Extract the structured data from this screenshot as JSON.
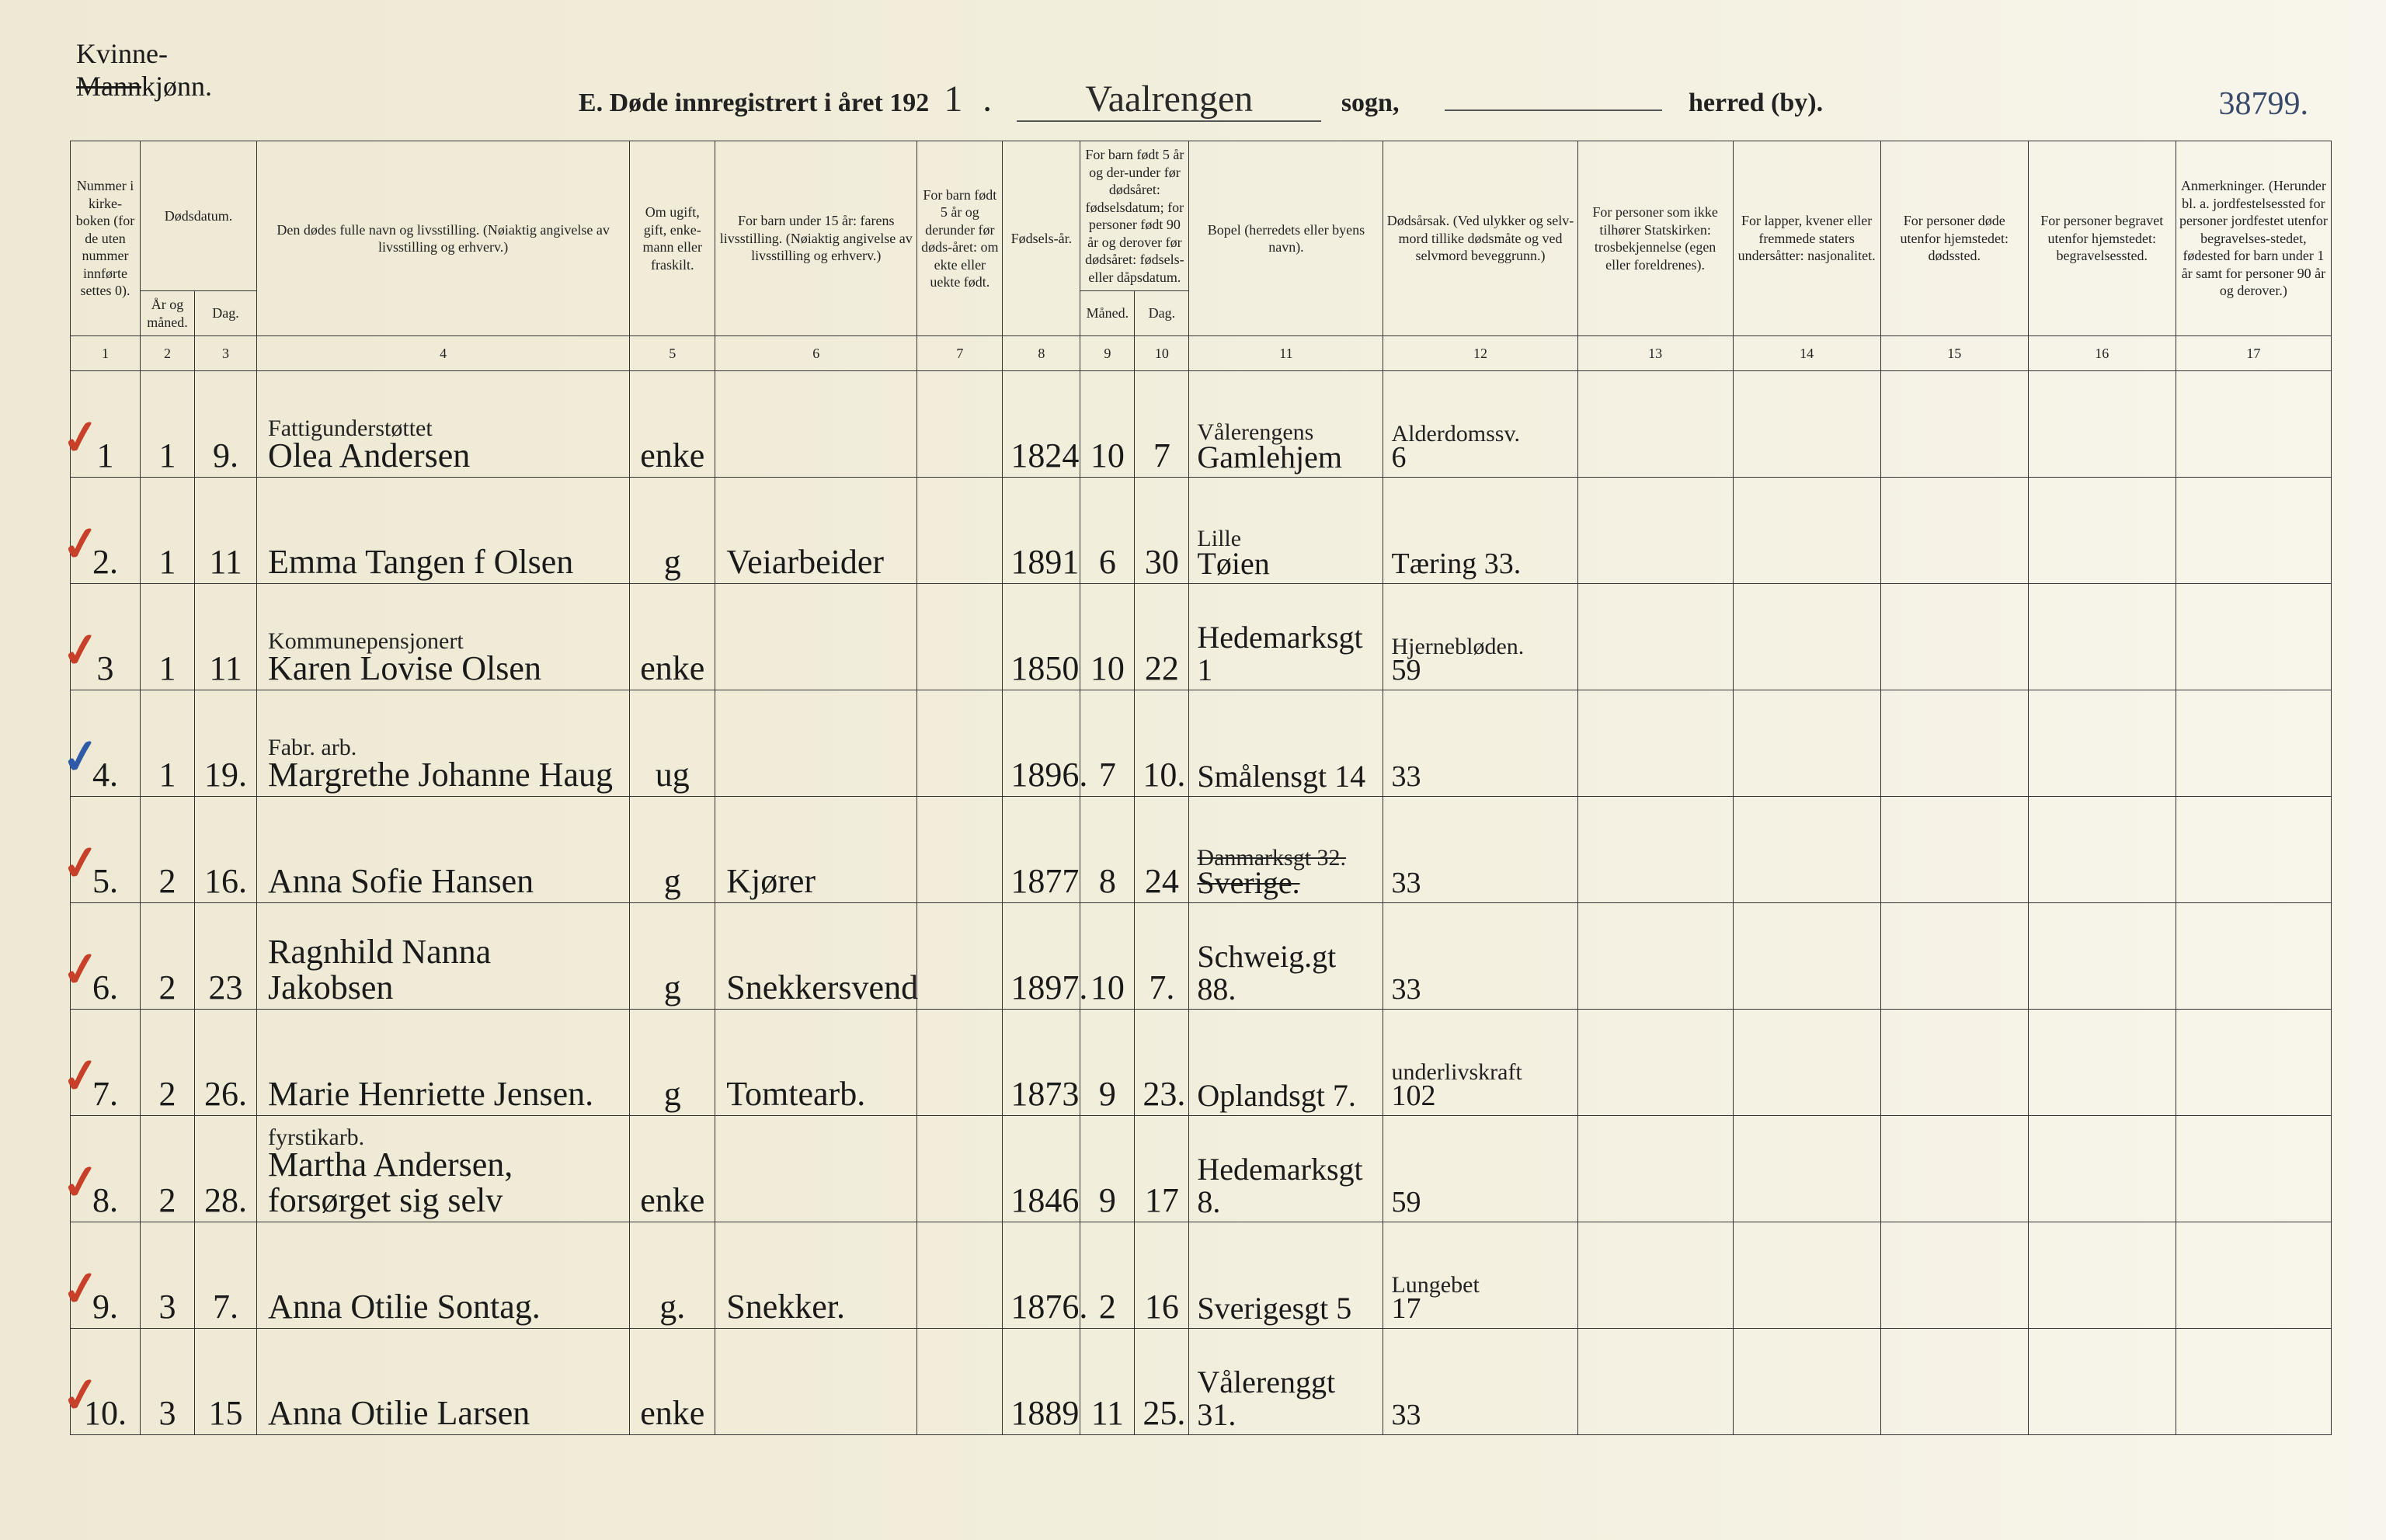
{
  "annotation": {
    "kvinne": "Kvinne-",
    "mannkjonn_struck": "Mann",
    "kjonn_suffix": "kjønn."
  },
  "title": {
    "prefix": "E.  Døde innregistrert i året 192",
    "year_digit": "1",
    "sogn_value": "Vaalrengen",
    "sogn_label": "sogn,",
    "herred_label": "herred (by)."
  },
  "corner_number": "38799.",
  "header": {
    "c1": "Nummer i kirke-boken (for de uten nummer innførte settes 0).",
    "c2a": "Dødsdatum.",
    "c2": "År og måned.",
    "c3": "Dag.",
    "c4": "Den dødes fulle navn og livsstilling. (Nøiaktig angivelse av livsstilling og erhverv.)",
    "c5": "Om ugift, gift, enke-mann eller fraskilt.",
    "c6": "For barn under 15 år: farens livsstilling. (Nøiaktig angivelse av livsstilling og erhverv.)",
    "c7": "For barn født 5 år og derunder før døds-året: om ekte eller uekte født.",
    "c8": "Fødsels-år.",
    "c9_10_top": "For barn født 5 år og der-under før dødsåret: fødselsdatum; for personer født 90 år og derover før dødsåret: fødsels- eller dåpsdatum.",
    "c9": "Måned.",
    "c10": "Dag.",
    "c11": "Bopel (herredets eller byens navn).",
    "c12": "Dødsårsak. (Ved ulykker og selv-mord tillike dødsmåte og ved selvmord beveggrunn.)",
    "c13": "For personer som ikke tilhører Statskirken: trosbekjennelse (egen eller foreldrenes).",
    "c14": "For lapper, kvener eller fremmede staters undersåtter: nasjonalitet.",
    "c15": "For personer døde utenfor hjemstedet: dødssted.",
    "c16": "For personer begravet utenfor hjemstedet: begravelsessted.",
    "c17": "Anmerkninger. (Herunder bl. a. jordfestelsessted for personer jordfestet utenfor begravelses-stedet, fødested for barn under 1 år samt for personer 90 år og derover.)"
  },
  "colnums": [
    "1",
    "2",
    "3",
    "4",
    "5",
    "6",
    "7",
    "8",
    "9",
    "10",
    "11",
    "12",
    "13",
    "14",
    "15",
    "16",
    "17"
  ],
  "rows": [
    {
      "tick": "red",
      "num": "1",
      "mo": "1",
      "day": "9.",
      "name_super": "Fattigunderstøttet",
      "name": "Olea Andersen",
      "status": "enke",
      "father": "",
      "legit": "",
      "byear": "1824",
      "bm": "10",
      "bd": "7",
      "addr_super": "Vålerengens",
      "addr": "Gamlehjem",
      "cause_super": "Alderdomssv.",
      "cause": "6"
    },
    {
      "tick": "red",
      "num": "2.",
      "mo": "1",
      "day": "11",
      "name_super": "",
      "name": "Emma Tangen f Olsen",
      "status": "g",
      "father": "Veiarbeider",
      "legit": "",
      "byear": "1891",
      "bm": "6",
      "bd": "30",
      "addr_super": "Lille",
      "addr": "Tøien",
      "cause_super": "",
      "cause": "Tæring 33."
    },
    {
      "tick": "red",
      "num": "3",
      "mo": "1",
      "day": "11",
      "name_super": "Kommunepensjonert",
      "name": "Karen Lovise Olsen",
      "status": "enke",
      "father": "",
      "legit": "",
      "byear": "1850",
      "bm": "10",
      "bd": "22",
      "addr_super": "",
      "addr": "Hedemarksgt 1",
      "cause_super": "Hjernebløden.",
      "cause": "59"
    },
    {
      "tick": "blue",
      "num": "4.",
      "mo": "1",
      "day": "19.",
      "name_super": "Fabr. arb.",
      "name": "Margrethe Johanne Haug",
      "status": "ug",
      "father": "",
      "legit": "",
      "byear": "1896.",
      "bm": "7",
      "bd": "10.",
      "addr_super": "",
      "addr": "Smålensgt 14",
      "cause_super": "",
      "cause": "33"
    },
    {
      "tick": "red",
      "num": "5.",
      "mo": "2",
      "day": "16.",
      "name_super": "",
      "name": "Anna Sofie Hansen",
      "status": "g",
      "father": "Kjører",
      "legit": "",
      "byear": "1877",
      "bm": "8",
      "bd": "24",
      "addr_super": "Danmarksgt 32.",
      "addr": "Sverige.",
      "addr_struck": true,
      "cause_super": "",
      "cause": "33"
    },
    {
      "tick": "red",
      "num": "6.",
      "mo": "2",
      "day": "23",
      "name_super": "",
      "name": "Ragnhild Nanna Jakobsen",
      "status": "g",
      "father": "Snekkersvend",
      "legit": "",
      "byear": "1897.",
      "bm": "10",
      "bd": "7.",
      "addr_super": "",
      "addr": "Schweig.gt 88.",
      "cause_super": "",
      "cause": "33"
    },
    {
      "tick": "red",
      "num": "7.",
      "mo": "2",
      "day": "26.",
      "name_super": "",
      "name": "Marie Henriette Jensen.",
      "status": "g",
      "father": "Tomtearb.",
      "legit": "",
      "byear": "1873",
      "bm": "9",
      "bd": "23.",
      "addr_super": "",
      "addr": "Oplandsgt 7.",
      "cause_super": "underlivskraft",
      "cause": "102"
    },
    {
      "tick": "red",
      "num": "8.",
      "mo": "2",
      "day": "28.",
      "name_super": "fyrstikarb.",
      "name": "Martha Andersen, forsørget sig selv",
      "status": "enke",
      "father": "",
      "legit": "",
      "byear": "1846",
      "bm": "9",
      "bd": "17",
      "addr_super": "",
      "addr": "Hedemarksgt 8.",
      "cause_super": "",
      "cause": "59"
    },
    {
      "tick": "red",
      "num": "9.",
      "mo": "3",
      "day": "7.",
      "name_super": "",
      "name": "Anna Otilie Sontag.",
      "status": "g.",
      "father": "Snekker.",
      "legit": "",
      "byear": "1876.",
      "bm": "2",
      "bd": "16",
      "addr_super": "",
      "addr": "Sverigesgt 5",
      "cause_super": "Lungebet",
      "cause": "17"
    },
    {
      "tick": "red",
      "num": "10.",
      "mo": "3",
      "day": "15",
      "name_super": "",
      "name": "Anna Otilie Larsen",
      "status": "enke",
      "father": "",
      "legit": "",
      "byear": "1889",
      "bm": "11",
      "bd": "25.",
      "addr_super": "",
      "addr": "Vålerenggt 31.",
      "cause_super": "",
      "cause": "33"
    }
  ]
}
